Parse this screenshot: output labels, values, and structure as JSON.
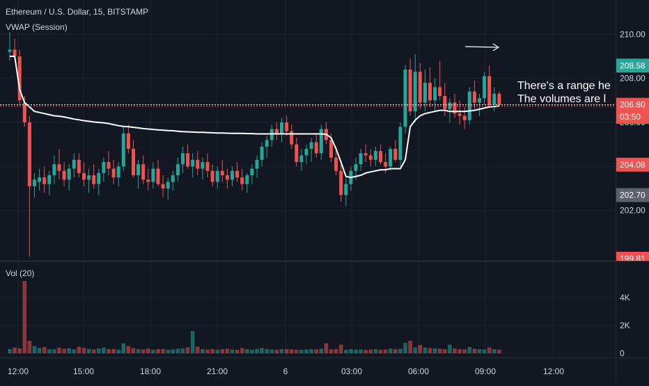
{
  "header": {
    "symbol_title": "Ethereum / U.S. Dollar, 15, BITSTAMP",
    "vwap_label": "VWAP (Session)",
    "volume_label": "Vol (20)"
  },
  "annotations": {
    "line1": "There's a range he",
    "line2": "The volumes are l"
  },
  "colors": {
    "background": "#131722",
    "grid": "#1e222d",
    "up": "#26a69a",
    "down": "#ef5350",
    "vwap": "#ffffff",
    "axis_text": "#d1d4dc",
    "price_tag_green": "#26a69a",
    "price_tag_red": "#ef5350",
    "price_tag_gray": "#5d606b"
  },
  "chart_data": [
    {
      "type": "candlestick",
      "name": "Ethereum / U.S. Dollar, 15, BITSTAMP",
      "ylim": [
        199.81,
        210.8
      ],
      "y_ticks": [
        202.0,
        204.0,
        206.0,
        208.0,
        210.0
      ],
      "y_tick_labels": [
        "202.00",
        "204.00",
        "206.00",
        "208.00",
        "210.00"
      ],
      "x_ticks": [
        "12:00",
        "15:00",
        "18:00",
        "21:00",
        "6",
        "03:00",
        "06:00",
        "09:00",
        "12:00"
      ],
      "price_tags": [
        {
          "label": "208.58",
          "value": 208.58,
          "color": "green"
        },
        {
          "label": "206.80",
          "value": 206.8,
          "color": "red"
        },
        {
          "label": "03:50",
          "value": 206.1,
          "color": "red"
        },
        {
          "label": "204.08",
          "value": 204.08,
          "color": "red"
        },
        {
          "label": "202.70",
          "value": 202.7,
          "color": "gray"
        },
        {
          "label": "199.81",
          "value": 199.81,
          "color": "red"
        }
      ],
      "last_price_line": 206.8,
      "grid": true,
      "candles": [
        [
          209.2,
          210.1,
          208.8,
          209.3
        ],
        [
          209.3,
          209.8,
          208.9,
          209.0
        ],
        [
          209.0,
          209.3,
          206.8,
          207.0
        ],
        [
          206.9,
          207.2,
          205.8,
          206.0
        ],
        [
          206.0,
          206.3,
          199.9,
          203.1
        ],
        [
          203.1,
          203.7,
          202.6,
          203.4
        ],
        [
          203.3,
          203.9,
          202.9,
          203.5
        ],
        [
          203.5,
          204.0,
          202.8,
          203.2
        ],
        [
          203.2,
          203.8,
          202.7,
          203.6
        ],
        [
          203.6,
          204.5,
          203.2,
          204.1
        ],
        [
          204.1,
          204.8,
          203.4,
          203.8
        ],
        [
          203.8,
          204.2,
          203.1,
          203.4
        ],
        [
          203.4,
          204.1,
          202.9,
          203.9
        ],
        [
          203.9,
          204.6,
          203.5,
          204.3
        ],
        [
          204.3,
          204.6,
          203.5,
          203.7
        ],
        [
          203.7,
          204.2,
          203.1,
          203.4
        ],
        [
          203.4,
          203.9,
          202.8,
          203.6
        ],
        [
          203.6,
          204.1,
          203.0,
          203.2
        ],
        [
          203.2,
          203.9,
          202.7,
          203.7
        ],
        [
          203.7,
          204.4,
          203.3,
          204.2
        ],
        [
          204.2,
          204.7,
          203.6,
          203.9
        ],
        [
          203.9,
          204.3,
          203.2,
          203.5
        ],
        [
          203.5,
          204.2,
          203.1,
          204.0
        ],
        [
          204.0,
          205.8,
          203.8,
          205.5
        ],
        [
          205.5,
          205.9,
          204.6,
          204.8
        ],
        [
          204.8,
          205.2,
          203.5,
          203.6
        ],
        [
          203.6,
          204.3,
          203.0,
          204.1
        ],
        [
          204.1,
          204.5,
          203.2,
          203.4
        ],
        [
          203.4,
          203.9,
          202.9,
          203.3
        ],
        [
          203.3,
          204.2,
          203.0,
          203.9
        ],
        [
          203.9,
          204.3,
          203.1,
          203.2
        ],
        [
          203.2,
          203.6,
          202.6,
          203.0
        ],
        [
          203.0,
          203.5,
          202.5,
          203.3
        ],
        [
          203.3,
          203.8,
          202.9,
          203.6
        ],
        [
          203.6,
          204.4,
          203.3,
          204.1
        ],
        [
          204.1,
          204.9,
          203.7,
          204.6
        ],
        [
          204.6,
          205.0,
          203.9,
          204.0
        ],
        [
          204.0,
          204.6,
          203.5,
          204.3
        ],
        [
          204.3,
          204.7,
          203.6,
          203.9
        ],
        [
          203.9,
          204.4,
          203.4,
          204.2
        ],
        [
          204.2,
          204.6,
          203.5,
          203.8
        ],
        [
          203.8,
          204.1,
          203.1,
          203.3
        ],
        [
          203.3,
          204.0,
          203.0,
          203.8
        ],
        [
          203.8,
          204.3,
          203.3,
          203.6
        ],
        [
          203.6,
          203.9,
          203.0,
          203.4
        ],
        [
          203.4,
          204.0,
          203.1,
          203.8
        ],
        [
          203.8,
          204.2,
          203.3,
          203.5
        ],
        [
          203.5,
          203.9,
          202.9,
          203.2
        ],
        [
          203.2,
          203.7,
          202.8,
          203.6
        ],
        [
          203.6,
          204.1,
          203.2,
          203.9
        ],
        [
          203.9,
          204.5,
          203.5,
          204.3
        ],
        [
          204.3,
          205.1,
          204.0,
          204.9
        ],
        [
          204.9,
          205.4,
          204.4,
          205.2
        ],
        [
          205.2,
          205.9,
          204.9,
          205.7
        ],
        [
          205.7,
          206.0,
          205.2,
          205.5
        ],
        [
          205.5,
          206.2,
          205.1,
          206.0
        ],
        [
          206.0,
          206.3,
          205.4,
          205.6
        ],
        [
          205.6,
          205.9,
          204.8,
          205.0
        ],
        [
          205.0,
          205.3,
          204.0,
          204.2
        ],
        [
          204.2,
          204.8,
          203.8,
          204.5
        ],
        [
          204.5,
          205.0,
          204.1,
          204.8
        ],
        [
          204.8,
          205.3,
          204.2,
          205.1
        ],
        [
          205.1,
          205.5,
          204.4,
          204.6
        ],
        [
          204.6,
          205.9,
          204.3,
          205.7
        ],
        [
          205.7,
          206.0,
          205.0,
          205.2
        ],
        [
          205.2,
          205.5,
          204.2,
          204.4
        ],
        [
          204.4,
          204.9,
          203.6,
          203.8
        ],
        [
          203.8,
          204.1,
          202.4,
          202.7
        ],
        [
          202.7,
          203.5,
          202.2,
          203.2
        ],
        [
          203.2,
          204.0,
          202.9,
          203.8
        ],
        [
          203.8,
          204.4,
          203.4,
          204.1
        ],
        [
          204.1,
          204.8,
          203.8,
          204.6
        ],
        [
          204.6,
          205.0,
          204.2,
          204.5
        ],
        [
          204.5,
          204.8,
          204.0,
          204.3
        ],
        [
          204.3,
          204.9,
          204.0,
          204.7
        ],
        [
          204.7,
          205.0,
          204.1,
          204.2
        ],
        [
          204.2,
          204.6,
          203.7,
          204.0
        ],
        [
          204.0,
          204.9,
          203.8,
          204.8
        ],
        [
          204.8,
          205.2,
          204.2,
          204.3
        ],
        [
          204.3,
          206.0,
          204.0,
          205.8
        ],
        [
          205.8,
          208.6,
          205.5,
          208.4
        ],
        [
          208.4,
          208.9,
          206.3,
          206.5
        ],
        [
          206.5,
          209.1,
          206.0,
          208.3
        ],
        [
          208.3,
          208.7,
          206.6,
          206.9
        ],
        [
          206.9,
          208.4,
          206.5,
          207.8
        ],
        [
          207.8,
          208.5,
          206.7,
          207.0
        ],
        [
          207.0,
          208.0,
          206.5,
          207.6
        ],
        [
          207.6,
          208.8,
          207.0,
          207.2
        ],
        [
          207.2,
          207.8,
          206.3,
          206.6
        ],
        [
          206.6,
          207.1,
          206.0,
          206.9
        ],
        [
          206.9,
          207.3,
          206.2,
          206.4
        ],
        [
          206.4,
          207.0,
          205.9,
          206.3
        ],
        [
          206.3,
          206.7,
          205.7,
          206.1
        ],
        [
          206.1,
          207.6,
          205.9,
          207.4
        ],
        [
          207.4,
          207.9,
          206.6,
          206.9
        ],
        [
          206.9,
          207.3,
          206.3,
          207.1
        ],
        [
          207.1,
          208.3,
          206.8,
          208.1
        ],
        [
          208.1,
          208.6,
          206.7,
          206.8
        ],
        [
          206.8,
          207.6,
          206.5,
          207.3
        ],
        [
          207.3,
          207.4,
          206.7,
          206.8
        ]
      ]
    },
    {
      "type": "line",
      "name": "VWAP (Session)",
      "y": [
        209.0,
        209.0,
        207.5,
        206.9,
        206.7,
        206.5,
        206.45,
        206.4,
        206.35,
        206.3,
        206.28,
        206.25,
        206.2,
        206.15,
        206.12,
        206.08,
        206.05,
        206.02,
        206.0,
        205.98,
        205.95,
        205.9,
        205.85,
        205.82,
        205.8,
        205.78,
        205.75,
        205.72,
        205.7,
        205.68,
        205.66,
        205.65,
        205.63,
        205.62,
        205.6,
        205.58,
        205.57,
        205.56,
        205.55,
        205.55,
        205.54,
        205.53,
        205.52,
        205.52,
        205.51,
        205.5,
        205.5,
        205.5,
        205.49,
        205.49,
        205.48,
        205.48,
        205.48,
        205.48,
        205.48,
        205.48,
        205.48,
        205.48,
        205.48,
        205.48,
        205.48,
        205.48,
        205.48,
        205.48,
        205.46,
        205.3,
        204.8,
        204.2,
        203.55,
        203.5,
        203.55,
        203.6,
        203.7,
        203.75,
        203.8,
        203.85,
        203.85,
        203.9,
        203.9,
        203.9,
        204.3,
        205.8,
        206.1,
        206.3,
        206.4,
        206.45,
        206.5,
        206.55,
        206.55,
        206.5,
        206.5,
        206.5,
        206.5,
        206.52,
        206.55,
        206.6,
        206.65,
        206.7,
        206.72,
        206.75
      ]
    },
    {
      "type": "bar",
      "name": "Vol (20)",
      "ylim": [
        0,
        5200
      ],
      "y_ticks": [
        0,
        2000,
        4000
      ],
      "y_tick_labels": [
        "0",
        "2K",
        "4K"
      ],
      "values": [
        300,
        420,
        350,
        5200,
        900,
        520,
        380,
        450,
        300,
        280,
        410,
        330,
        360,
        290,
        470,
        390,
        320,
        280,
        350,
        420,
        310,
        300,
        260,
        720,
        520,
        380,
        300,
        280,
        340,
        260,
        300,
        310,
        250,
        280,
        330,
        350,
        420,
        1600,
        480,
        300,
        270,
        310,
        260,
        290,
        330,
        280,
        250,
        380,
        300,
        260,
        320,
        380,
        300,
        280,
        260,
        300,
        310,
        280,
        260,
        250,
        270,
        300,
        280,
        330,
        720,
        280,
        300,
        620,
        250,
        300,
        260,
        280,
        250,
        270,
        300,
        260,
        280,
        350,
        300,
        330,
        760,
        900,
        420,
        600,
        420,
        380,
        360,
        330,
        300,
        620,
        350,
        300,
        280,
        450,
        330,
        300,
        280,
        420,
        300,
        260
      ]
    }
  ]
}
